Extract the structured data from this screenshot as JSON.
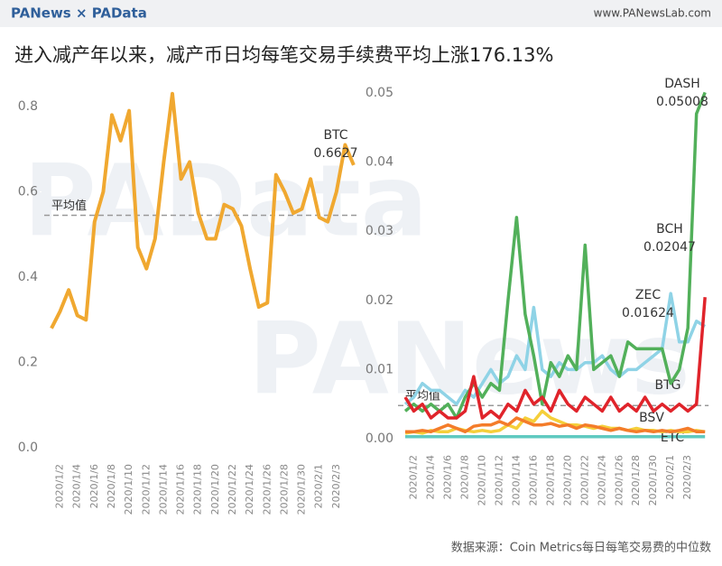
{
  "header": {
    "logo": "PANews × PAData",
    "site": "www.PANewsLab.com"
  },
  "title": "进入减产年以来，减产币日均每笔交易手续费平均上涨176.13%",
  "watermarks": [
    "PAData",
    "PANews"
  ],
  "source": "数据来源：Coin Metrics每日每笔交易费的中位数",
  "chart_data": [
    {
      "type": "line",
      "categories": [
        null,
        "2020/1/2",
        null,
        "2020/1/4",
        null,
        "2020/1/6",
        null,
        "2020/1/8",
        null,
        "2020/1/10",
        null,
        "2020/1/12",
        null,
        "2020/1/14",
        null,
        "2020/1/16",
        null,
        "2020/1/18",
        null,
        "2020/1/20",
        null,
        "2020/1/22",
        null,
        "2020/1/24",
        null,
        "2020/1/26",
        null,
        "2020/1/28",
        null,
        "2020/1/30",
        null,
        "2020/2/1",
        null,
        "2020/2/3",
        null,
        null
      ],
      "series": [
        {
          "name": "BTC",
          "color": "#f0a830",
          "values": [
            0.28,
            0.32,
            0.37,
            0.31,
            0.3,
            0.53,
            0.6,
            0.78,
            0.72,
            0.79,
            0.47,
            0.42,
            0.49,
            0.67,
            0.83,
            0.63,
            0.67,
            0.55,
            0.49,
            0.49,
            0.57,
            0.56,
            0.52,
            0.42,
            0.33,
            0.34,
            0.64,
            0.6,
            0.55,
            0.56,
            0.63,
            0.54,
            0.53,
            0.6,
            0.71,
            0.6627
          ],
          "value_labels": [
            null,
            null,
            null,
            null,
            null,
            null,
            null,
            null,
            null,
            null,
            null,
            null,
            null,
            null,
            null,
            null,
            null,
            null,
            null,
            null,
            null,
            null,
            null,
            null,
            null,
            null,
            null,
            null,
            null,
            null,
            null,
            null,
            null,
            null,
            null,
            "0.6627"
          ]
        }
      ],
      "average": {
        "label": "平均值",
        "value": 0.545
      },
      "ylim": [
        0,
        0.85
      ],
      "yticks": [
        {
          "value": 0,
          "label": "0.0"
        },
        0.2,
        0.4,
        0.6,
        0.8
      ]
    },
    {
      "type": "line",
      "categories": [
        null,
        "2020/1/2",
        null,
        "2020/1/4",
        null,
        "2020/1/6",
        null,
        "2020/1/8",
        null,
        "2020/1/10",
        null,
        "2020/1/12",
        null,
        "2020/1/14",
        null,
        "2020/1/16",
        null,
        "2020/1/18",
        null,
        "2020/1/20",
        null,
        "2020/1/22",
        null,
        "2020/1/24",
        null,
        "2020/1/26",
        null,
        "2020/1/28",
        null,
        "2020/1/30",
        null,
        "2020/2/1",
        null,
        "2020/2/3",
        null,
        null
      ],
      "series": [
        {
          "name": "ETC",
          "color": "#5fc9c0",
          "values": [
            0.0003,
            0.0003,
            0.0003,
            0.0003,
            0.0003,
            0.0003,
            0.0003,
            0.0003,
            0.0003,
            0.0003,
            0.0003,
            0.0003,
            0.0003,
            0.0003,
            0.0003,
            0.0003,
            0.0003,
            0.0003,
            0.0003,
            0.0003,
            0.0003,
            0.0003,
            0.0003,
            0.0003,
            0.0003,
            0.0003,
            0.0003,
            0.0003,
            0.0003,
            0.0003,
            0.0003,
            0.0003,
            0.0003,
            0.0003,
            0.0003,
            0.0003
          ]
        },
        {
          "name": "BSV",
          "color": "#f5cf3a",
          "values": [
            0.0008,
            0.001,
            0.0008,
            0.0012,
            0.001,
            0.001,
            0.0015,
            0.0012,
            0.001,
            0.0012,
            0.001,
            0.0012,
            0.002,
            0.0015,
            0.003,
            0.0025,
            0.004,
            0.003,
            0.0025,
            0.002,
            0.002,
            0.0018,
            0.0015,
            0.0018,
            0.0015,
            0.0015,
            0.0012,
            0.0015,
            0.0012,
            0.0012,
            0.001,
            0.0012,
            0.001,
            0.001,
            0.0012,
            0.001
          ]
        },
        {
          "name": "BTG",
          "color": "#f47c2a",
          "values": [
            0.001,
            0.001,
            0.0012,
            0.001,
            0.0015,
            0.002,
            0.0015,
            0.001,
            0.0018,
            0.002,
            0.002,
            0.0025,
            0.002,
            0.003,
            0.0025,
            0.002,
            0.002,
            0.0022,
            0.0018,
            0.002,
            0.0015,
            0.002,
            0.0018,
            0.0015,
            0.0012,
            0.0015,
            0.0012,
            0.001,
            0.0012,
            0.001,
            0.0012,
            0.001,
            0.0012,
            0.0015,
            0.001,
            0.001
          ]
        },
        {
          "name": "ZEC",
          "color": "#8fd3e6",
          "values": [
            0.005,
            0.006,
            0.008,
            0.007,
            0.007,
            0.006,
            0.005,
            0.007,
            0.006,
            0.008,
            0.01,
            0.008,
            0.009,
            0.012,
            0.01,
            0.019,
            0.01,
            0.009,
            0.011,
            0.01,
            0.01,
            0.011,
            0.011,
            0.012,
            0.01,
            0.009,
            0.01,
            0.01,
            0.011,
            0.012,
            0.013,
            0.021,
            0.014,
            0.014,
            0.017,
            0.01624
          ],
          "value_labels": [
            null,
            null,
            null,
            null,
            null,
            null,
            null,
            null,
            null,
            null,
            null,
            null,
            null,
            null,
            null,
            null,
            null,
            null,
            null,
            null,
            null,
            null,
            null,
            null,
            null,
            null,
            null,
            null,
            null,
            null,
            null,
            null,
            null,
            null,
            null,
            "0.01624"
          ]
        },
        {
          "name": "DASH",
          "color": "#52b05a",
          "values": [
            0.004,
            0.005,
            0.004,
            0.005,
            0.004,
            0.005,
            0.003,
            0.006,
            0.008,
            0.006,
            0.008,
            0.007,
            0.02,
            0.032,
            0.018,
            0.012,
            0.005,
            0.011,
            0.009,
            0.012,
            0.01,
            0.028,
            0.01,
            0.011,
            0.012,
            0.009,
            0.014,
            0.013,
            0.013,
            0.013,
            0.013,
            0.008,
            0.01,
            0.016,
            0.047,
            0.05008
          ],
          "value_labels": [
            null,
            null,
            null,
            null,
            null,
            null,
            null,
            null,
            null,
            null,
            null,
            null,
            null,
            null,
            null,
            null,
            null,
            null,
            null,
            null,
            null,
            null,
            null,
            null,
            null,
            null,
            null,
            null,
            null,
            null,
            null,
            null,
            null,
            null,
            null,
            "0.05008"
          ]
        },
        {
          "name": "BCH",
          "color": "#e0242b",
          "values": [
            0.006,
            0.004,
            0.005,
            0.003,
            0.004,
            0.003,
            0.003,
            0.004,
            0.009,
            0.003,
            0.004,
            0.003,
            0.005,
            0.004,
            0.007,
            0.005,
            0.006,
            0.004,
            0.007,
            0.005,
            0.004,
            0.006,
            0.005,
            0.004,
            0.006,
            0.004,
            0.005,
            0.004,
            0.006,
            0.004,
            0.005,
            0.004,
            0.005,
            0.004,
            0.005,
            0.02047
          ],
          "value_labels": [
            null,
            null,
            null,
            null,
            null,
            null,
            null,
            null,
            null,
            null,
            null,
            null,
            null,
            null,
            null,
            null,
            null,
            null,
            null,
            null,
            null,
            null,
            null,
            null,
            null,
            null,
            null,
            null,
            null,
            null,
            null,
            null,
            null,
            null,
            null,
            "0.02047"
          ]
        }
      ],
      "average": {
        "label": "平均值",
        "value": 0.0048
      },
      "ylim": [
        0,
        0.051
      ],
      "yticks": [
        {
          "value": 0,
          "label": "0.00"
        },
        0.01,
        0.02,
        0.03,
        0.04,
        0.05
      ]
    }
  ]
}
